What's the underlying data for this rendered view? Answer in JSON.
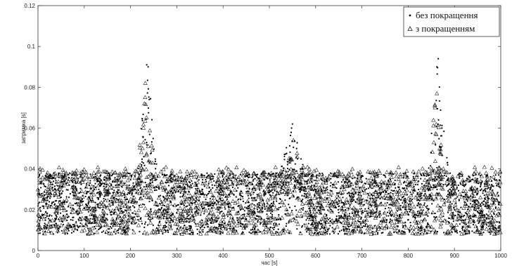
{
  "chart_data": {
    "type": "scatter",
    "title": "",
    "xlabel": "час [s]",
    "ylabel": "затримка [s]",
    "xlim": [
      0,
      1000
    ],
    "ylim": [
      0,
      0.12
    ],
    "xticks": [
      "0",
      "100",
      "200",
      "300",
      "400",
      "500",
      "600",
      "700",
      "800",
      "900",
      "1000"
    ],
    "yticks": [
      "0",
      "0.02",
      "0.04",
      "0.06",
      "0.08",
      "0.1",
      "0.12"
    ],
    "grid": false,
    "legend_position": "top-right",
    "series": [
      {
        "name": "без покращення",
        "marker": "dot",
        "color": "#000000",
        "background_delay_range": [
          0.008,
          0.038
        ],
        "peaks": [
          {
            "x": 235,
            "y": 0.091
          },
          {
            "x": 238,
            "y": 0.09
          },
          {
            "x": 550,
            "y": 0.062
          },
          {
            "x": 548,
            "y": 0.06
          },
          {
            "x": 865,
            "y": 0.094
          },
          {
            "x": 862,
            "y": 0.09
          }
        ],
        "points": []
      },
      {
        "name": "з покращенням",
        "marker": "triangle",
        "color": "#000000",
        "background_delay_range": [
          0.008,
          0.041
        ],
        "peaks": [
          {
            "x": 232,
            "y": 0.082
          },
          {
            "x": 230,
            "y": 0.072
          },
          {
            "x": 552,
            "y": 0.054
          },
          {
            "x": 862,
            "y": 0.077
          },
          {
            "x": 858,
            "y": 0.07
          }
        ],
        "points": []
      }
    ]
  }
}
